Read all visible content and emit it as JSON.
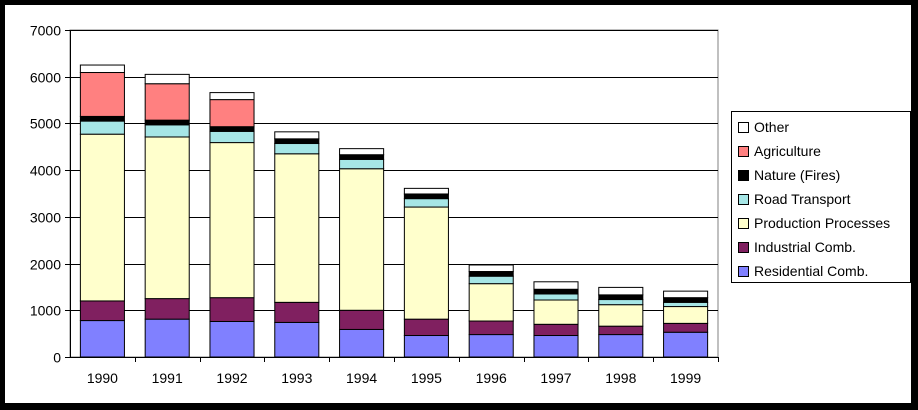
{
  "chart_data": {
    "type": "bar",
    "stacked": true,
    "title": "",
    "xlabel": "",
    "ylabel": "",
    "ylim": [
      0,
      7000
    ],
    "yticks": [
      0,
      1000,
      2000,
      3000,
      4000,
      5000,
      6000,
      7000
    ],
    "grid": true,
    "legend_position": "right",
    "categories": [
      "1990",
      "1991",
      "1992",
      "1993",
      "1994",
      "1995",
      "1996",
      "1997",
      "1998",
      "1999"
    ],
    "series": [
      {
        "name": "Residential Comb.",
        "color": "#8080ff",
        "values": [
          780,
          810,
          760,
          740,
          590,
          460,
          480,
          460,
          480,
          530
        ]
      },
      {
        "name": "Industrial Comb.",
        "color": "#802060",
        "values": [
          420,
          440,
          510,
          430,
          410,
          350,
          290,
          240,
          180,
          190
        ]
      },
      {
        "name": "Production Processes",
        "color": "#ffffcc",
        "values": [
          3570,
          3460,
          3320,
          3180,
          3030,
          2400,
          800,
          520,
          460,
          360
        ]
      },
      {
        "name": "Road Transport",
        "color": "#a6e6e6",
        "values": [
          280,
          260,
          240,
          220,
          200,
          180,
          160,
          130,
          110,
          90
        ]
      },
      {
        "name": "Nature (Fires)",
        "color": "#000000",
        "values": [
          100,
          100,
          100,
          100,
          100,
          100,
          100,
          100,
          100,
          100
        ]
      },
      {
        "name": "Agriculture",
        "color": "#ff8080",
        "values": [
          940,
          780,
          580,
          0,
          0,
          0,
          0,
          0,
          0,
          0
        ]
      },
      {
        "name": "Other",
        "color": "#ffffff",
        "values": [
          160,
          200,
          150,
          150,
          130,
          120,
          140,
          160,
          160,
          140
        ]
      }
    ]
  }
}
